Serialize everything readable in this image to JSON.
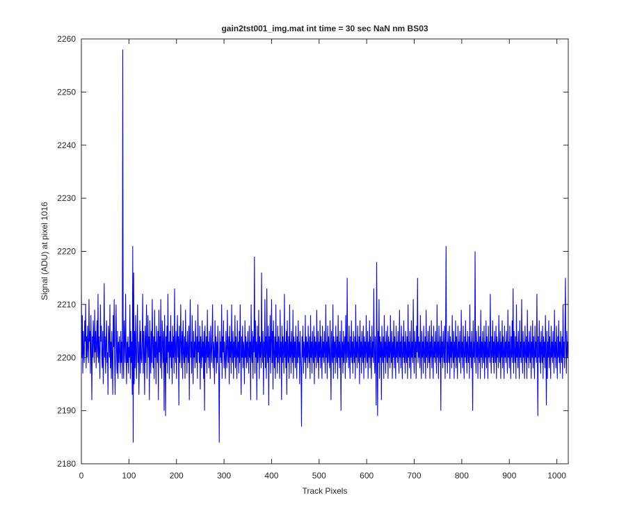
{
  "chart_data": {
    "type": "line",
    "title": "gain2tst001_img.mat int time = 30 sec  NaN nm BS03",
    "xlabel": "Track Pixels",
    "ylabel": "Signal (ADU) at pixel 1016",
    "xlim": [
      0,
      1024
    ],
    "xticks": [
      0,
      100,
      200,
      300,
      400,
      500,
      600,
      700,
      800,
      900,
      1000
    ],
    "ylim": [
      2180,
      2260
    ],
    "yticks": [
      2180,
      2190,
      2200,
      2210,
      2220,
      2230,
      2240,
      2250,
      2260
    ],
    "grid": false,
    "series": [
      {
        "color": "#0000ff",
        "values": [
          2213,
          2200,
          2208,
          2197,
          2205,
          2201,
          2199,
          2207,
          2203,
          2210,
          2198,
          2204,
          2200,
          2206,
          2202,
          2199,
          2211,
          2203,
          2205,
          2197,
          2208,
          2201,
          2192,
          2204,
          2200,
          2207,
          2203,
          2199,
          2209,
          2201,
          2205,
          2198,
          2203,
          2207,
          2200,
          2212,
          2199,
          2204,
          2201,
          2196,
          2210,
          2203,
          2206,
          2200,
          2198,
          2205,
          2195,
          2202,
          2214,
          2200,
          2204,
          2197,
          2203,
          2207,
          2199,
          2201,
          2193,
          2206,
          2204,
          2200,
          2210,
          2198,
          2203,
          2196,
          2205,
          2200,
          2193,
          2208,
          2202,
          2211,
          2199,
          2193,
          2204,
          2210,
          2201,
          2197,
          2205,
          2196,
          2203,
          2199,
          2204,
          2201,
          2197,
          2205,
          2199,
          2203,
          2196,
          2258,
          2200,
          2196,
          2207,
          2203,
          2199,
          2212,
          2201,
          2195,
          2203,
          2199,
          2204,
          2197,
          2202,
          2200,
          2210,
          2196,
          2205,
          2199,
          2203,
          2193,
          2221,
          2184,
          2216,
          2195,
          2205,
          2198,
          2208,
          2201,
          2196,
          2204,
          2210,
          2199,
          2203,
          2193,
          2201,
          2207,
          2197,
          2205,
          2200,
          2199,
          2203,
          2212,
          2197,
          2205,
          2201,
          2193,
          2206,
          2199,
          2203,
          2210,
          2196,
          2202,
          2208,
          2200,
          2204,
          2192,
          2207,
          2201,
          2197,
          2205,
          2199,
          2211,
          2203,
          2198,
          2204,
          2196,
          2209,
          2200,
          2203,
          2195,
          2206,
          2201,
          2199,
          2205,
          2192,
          2209,
          2201,
          2204,
          2198,
          2211,
          2200,
          2196,
          2207,
          2203,
          2199,
          2205,
          2190,
          2208,
          2201,
          2189,
          2204,
          2199,
          2206,
          2197,
          2212,
          2201,
          2203,
          2196,
          2205,
          2200,
          2208,
          2198,
          2203,
          2195,
          2206,
          2200,
          2204,
          2197,
          2213,
          2201,
          2199,
          2205,
          2196,
          2203,
          2208,
          2200,
          2204,
          2191,
          2206,
          2199,
          2203,
          2210,
          2198,
          2202,
          2205,
          2196,
          2207,
          2201,
          2199,
          2204,
          2196,
          2209,
          2200,
          2203,
          2197,
          2205,
          2201,
          2199,
          2206,
          2192,
          2204,
          2211,
          2200,
          2203,
          2197,
          2208,
          2201,
          2195,
          2205,
          2200,
          2203,
          2198,
          2207,
          2202,
          2199,
          2204,
          2196,
          2210,
          2201,
          2203,
          2199,
          2206,
          2194,
          2204,
          2201,
          2198,
          2207,
          2200,
          2203,
          2196,
          2205,
          2190,
          2206,
          2199,
          2201,
          2204,
          2197,
          2209,
          2200,
          2203,
          2198,
          2205,
          2201,
          2196,
          2206,
          2202,
          2199,
          2204,
          2210,
          2198,
          2203,
          2201,
          2195,
          2207,
          2200,
          2204,
          2197,
          2203,
          2199,
          2206,
          2201,
          2197,
          2184,
          2205,
          2200,
          2203,
          2199,
          2210,
          2196,
          2204,
          2201,
          2207,
          2198,
          2203,
          2200,
          2196,
          2205,
          2201,
          2198,
          2209,
          2202,
          2199,
          2204,
          2195,
          2206,
          2200,
          2203,
          2197,
          2210,
          2201,
          2199,
          2205,
          2196,
          2203,
          2200,
          2208,
          2198,
          2204,
          2201,
          2196,
          2207,
          2200,
          2203,
          2197,
          2205,
          2199,
          2210,
          2201,
          2193,
          2204,
          2200,
          2206,
          2198,
          2203,
          2201,
          2195,
          2207,
          2200,
          2204,
          2198,
          2203,
          2199,
          2205,
          2201,
          2197,
          2206,
          2200,
          2203,
          2192,
          2210,
          2201,
          2199,
          2205,
          2196,
          2204,
          2201,
          2219,
          2197,
          2207,
          2200,
          2203,
          2192,
          2206,
          2199,
          2201,
          2209,
          2196,
          2204,
          2200,
          2203,
          2198,
          2216,
          2201,
          2199,
          2205,
          2193,
          2203,
          2200,
          2211,
          2198,
          2204,
          2196,
          2213,
          2201,
          2199,
          2206,
          2191,
          2204,
          2200,
          2208,
          2197,
          2203,
          2211,
          2199,
          2205,
          2194,
          2207,
          2201,
          2198,
          2204,
          2196,
          2210,
          2200,
          2203,
          2197,
          2206,
          2199,
          2204,
          2201,
          2196,
          2209,
          2200,
          2203,
          2192,
          2206,
          2199,
          2204,
          2201,
          2197,
          2212,
          2200,
          2203,
          2198,
          2205,
          2193,
          2207,
          2201,
          2199,
          2204,
          2196,
          2210,
          2200,
          2203,
          2197,
          2205,
          2201,
          2199,
          2209,
          2196,
          2204,
          2200,
          2203,
          2198,
          2206,
          2201,
          2196,
          2204,
          2199,
          2207,
          2200,
          2203,
          2195,
          2205,
          2201,
          2198,
          2187,
          2204,
          2200,
          2206,
          2197,
          2203,
          2201,
          2199,
          2208,
          2196,
          2204,
          2200,
          2203,
          2198,
          2206,
          2201,
          2199,
          2204,
          2196,
          2208,
          2200,
          2203,
          2197,
          2205,
          2201,
          2199,
          2206,
          2195,
          2204,
          2200,
          2203,
          2198,
          2209,
          2201,
          2199,
          2205,
          2196,
          2203,
          2200,
          2207,
          2198,
          2204,
          2201,
          2196,
          2206,
          2200,
          2203,
          2199,
          2205,
          2201,
          2197,
          2210,
          2200,
          2203,
          2196,
          2206,
          2199,
          2204,
          2201,
          2198,
          2207,
          2200,
          2192,
          2205,
          2201,
          2199,
          2210,
          2196,
          2204,
          2200,
          2203,
          2197,
          2206,
          2201,
          2199,
          2204,
          2196,
          2208,
          2200,
          2203,
          2198,
          2205,
          2201,
          2190,
          2207,
          2200,
          2203,
          2197,
          2205,
          2199,
          2202,
          2204,
          2196,
          2208,
          2201,
          2199,
          2215,
          2200,
          2203,
          2198,
          2206,
          2201,
          2196,
          2204,
          2200,
          2207,
          2199,
          2203,
          2197,
          2205,
          2201,
          2199,
          2204,
          2196,
          2210,
          2200,
          2203,
          2198,
          2206,
          2201,
          2199,
          2204,
          2195,
          2207,
          2200,
          2203,
          2197,
          2205,
          2201,
          2199,
          2206,
          2196,
          2204,
          2200,
          2203,
          2198,
          2208,
          2201,
          2199,
          2205,
          2196,
          2203,
          2200,
          2207,
          2198,
          2204,
          2201,
          2196,
          2206,
          2200,
          2203,
          2199,
          2213,
          2201,
          2197,
          2204,
          2200,
          2191,
          2218,
          2203,
          2189,
          2205,
          2199,
          2211,
          2196,
          2204,
          2200,
          2203,
          2192,
          2206,
          2201,
          2199,
          2204,
          2196,
          2208,
          2200,
          2203,
          2197,
          2205,
          2201,
          2199,
          2206,
          2196,
          2204,
          2200,
          2203,
          2198,
          2208,
          2201,
          2199,
          2205,
          2196,
          2203,
          2200,
          2207,
          2198,
          2204,
          2201,
          2196,
          2206,
          2200,
          2203,
          2199,
          2205,
          2201,
          2197,
          2209,
          2200,
          2203,
          2198,
          2206,
          2201,
          2196,
          2204,
          2200,
          2207,
          2199,
          2203,
          2197,
          2205,
          2201,
          2199,
          2204,
          2196,
          2210,
          2200,
          2203,
          2198,
          2205,
          2201,
          2196,
          2207,
          2200,
          2203,
          2199,
          2211,
          2201,
          2197,
          2205,
          2200,
          2203,
          2196,
          2206,
          2201,
          2215,
          2199,
          2204,
          2200,
          2203,
          2198,
          2208,
          2201,
          2196,
          2205,
          2200,
          2203,
          2197,
          2206,
          2201,
          2199,
          2204,
          2196,
          2209,
          2200,
          2203,
          2198,
          2205,
          2201,
          2199,
          2206,
          2196,
          2203,
          2200,
          2207,
          2198,
          2204,
          2201,
          2196,
          2206,
          2200,
          2203,
          2199,
          2205,
          2201,
          2197,
          2210,
          2200,
          2203,
          2196,
          2206,
          2201,
          2199,
          2204,
          2190,
          2207,
          2200,
          2203,
          2198,
          2205,
          2201,
          2199,
          2206,
          2196,
          2204,
          2221,
          2199,
          2203,
          2197,
          2205,
          2201,
          2199,
          2206,
          2196,
          2204,
          2200,
          2203,
          2198,
          2208,
          2201,
          2199,
          2205,
          2196,
          2203,
          2200,
          2207,
          2198,
          2204,
          2201,
          2196,
          2206,
          2200,
          2203,
          2199,
          2205,
          2201,
          2197,
          2209,
          2200,
          2203,
          2198,
          2206,
          2201,
          2196,
          2204,
          2200,
          2207,
          2199,
          2203,
          2197,
          2205,
          2201,
          2199,
          2204,
          2196,
          2210,
          2200,
          2203,
          2198,
          2205,
          2201,
          2190,
          2207,
          2200,
          2203,
          2199,
          2220,
          2201,
          2197,
          2205,
          2200,
          2203,
          2196,
          2206,
          2201,
          2199,
          2204,
          2196,
          2209,
          2200,
          2203,
          2198,
          2205,
          2201,
          2199,
          2206,
          2196,
          2203,
          2200,
          2207,
          2198,
          2204,
          2201,
          2196,
          2206,
          2200,
          2203,
          2199,
          2212,
          2201,
          2197,
          2204,
          2200,
          2207,
          2199,
          2203,
          2197,
          2205,
          2201,
          2199,
          2206,
          2196,
          2204,
          2200,
          2203,
          2198,
          2208,
          2201,
          2199,
          2205,
          2196,
          2203,
          2200,
          2207,
          2198,
          2204,
          2201,
          2196,
          2206,
          2200,
          2203,
          2199,
          2205,
          2201,
          2197,
          2209,
          2200,
          2203,
          2198,
          2206,
          2201,
          2196,
          2204,
          2200,
          2207,
          2199,
          2213,
          2197,
          2205,
          2201,
          2199,
          2204,
          2196,
          2210,
          2200,
          2203,
          2198,
          2205,
          2201,
          2196,
          2207,
          2200,
          2203,
          2199,
          2211,
          2201,
          2197,
          2205,
          2200,
          2203,
          2196,
          2206,
          2201,
          2199,
          2204,
          2196,
          2209,
          2200,
          2203,
          2198,
          2205,
          2201,
          2199,
          2206,
          2196,
          2203,
          2200,
          2207,
          2198,
          2204,
          2201,
          2196,
          2206,
          2200,
          2203,
          2199,
          2212,
          2201,
          2189,
          2204,
          2200,
          2207,
          2199,
          2203,
          2197,
          2205,
          2201,
          2199,
          2206,
          2196,
          2204,
          2200,
          2203,
          2198,
          2208,
          2201,
          2191,
          2205,
          2196,
          2203,
          2200,
          2207,
          2198,
          2204,
          2201,
          2196,
          2206,
          2200,
          2203,
          2199,
          2205,
          2201,
          2197,
          2209,
          2200,
          2203,
          2198,
          2206,
          2201,
          2196,
          2204,
          2200,
          2207,
          2199,
          2203,
          2197,
          2205,
          2201,
          2199,
          2204,
          2196,
          2210,
          2200,
          2203,
          2198,
          2205,
          2215,
          2201,
          2197,
          2205,
          2200,
          2203
        ]
      }
    ]
  }
}
